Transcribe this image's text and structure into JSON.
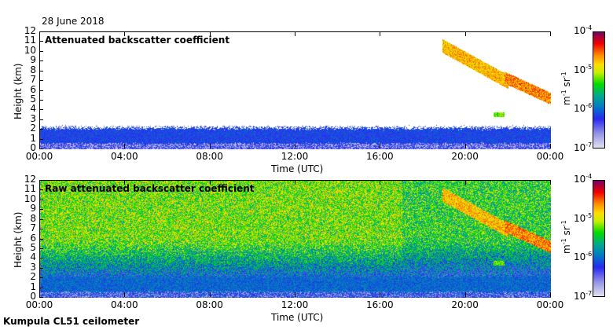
{
  "header": {
    "date": "28 June 2018"
  },
  "footer": {
    "instrument": "Kumpula CL51 ceilometer"
  },
  "chart_data": [
    {
      "type": "heatmap",
      "title": "Attenuated backscatter coefficient",
      "xlabel": "Time (UTC)",
      "ylabel": "Height (km)",
      "xlim": [
        0,
        24
      ],
      "ylim": [
        0,
        12
      ],
      "xticks": [
        "00:00",
        "04:00",
        "08:00",
        "12:00",
        "16:00",
        "20:00",
        "00:00"
      ],
      "yticks": [
        "0",
        "1",
        "2",
        "3",
        "4",
        "5",
        "6",
        "7",
        "8",
        "9",
        "10",
        "11",
        "12"
      ],
      "colorbar": {
        "label": "m-1 sr-1",
        "unit_base": "m",
        "unit_exp1": "-1",
        "unit_sr": "sr",
        "unit_exp2": "-1",
        "ticks": [
          "10",
          "10",
          "10",
          "10"
        ],
        "tick_exps": [
          "-4",
          "-5",
          "-6",
          "-7"
        ],
        "range_log10": [
          -7,
          -4
        ]
      }
    },
    {
      "type": "heatmap",
      "title": "Raw attenuated backscatter coefficient",
      "xlabel": "Time (UTC)",
      "ylabel": "Height (km)",
      "xlim": [
        0,
        24
      ],
      "ylim": [
        0,
        12
      ],
      "xticks": [
        "00:00",
        "04:00",
        "08:00",
        "12:00",
        "16:00",
        "20:00",
        "00:00"
      ],
      "yticks": [
        "0",
        "1",
        "2",
        "3",
        "4",
        "5",
        "6",
        "7",
        "8",
        "9",
        "10",
        "11",
        "12"
      ],
      "colorbar": {
        "label": "m-1 sr-1",
        "unit_base": "m",
        "unit_exp1": "-1",
        "unit_sr": "sr",
        "unit_exp2": "-1",
        "ticks": [
          "10",
          "10",
          "10",
          "10"
        ],
        "tick_exps": [
          "-4",
          "-5",
          "-6",
          "-7"
        ],
        "range_log10": [
          -7,
          -4
        ]
      }
    }
  ]
}
